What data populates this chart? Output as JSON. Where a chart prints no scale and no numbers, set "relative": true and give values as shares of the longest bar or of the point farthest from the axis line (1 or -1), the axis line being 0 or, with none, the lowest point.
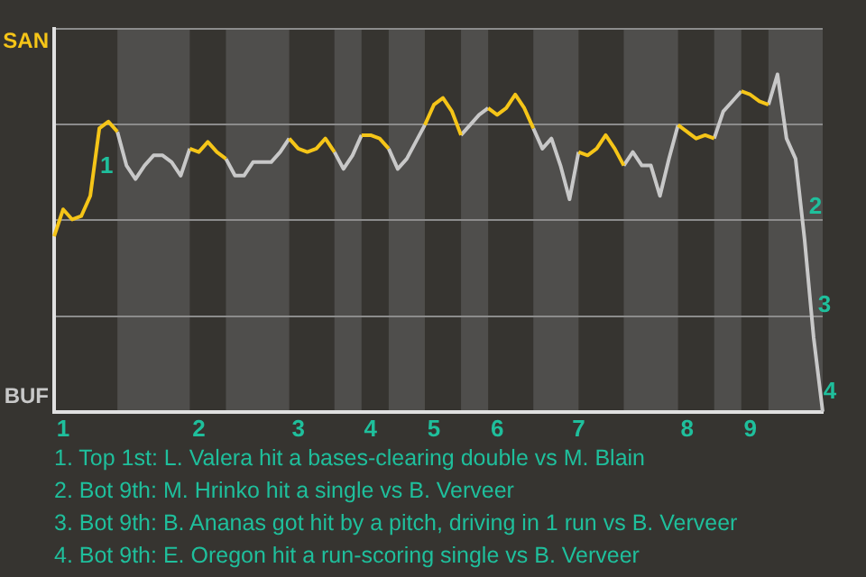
{
  "chart_data": {
    "type": "line",
    "relative": true,
    "categories": [
      null,
      "1",
      null,
      null,
      null,
      null,
      null,
      null,
      null,
      null,
      null,
      null,
      null,
      null,
      null,
      null,
      "2",
      null,
      null,
      null,
      null,
      null,
      null,
      null,
      null,
      null,
      null,
      "3",
      null,
      null,
      null,
      null,
      null,
      null,
      null,
      "4",
      null,
      null,
      null,
      null,
      null,
      null,
      "5",
      null,
      null,
      null,
      null,
      null,
      null,
      "6",
      null,
      null,
      null,
      null,
      null,
      null,
      null,
      null,
      "7",
      null,
      null,
      null,
      null,
      null,
      null,
      null,
      null,
      null,
      null,
      null,
      "8",
      null,
      null,
      null,
      null,
      null,
      null,
      "9",
      null,
      null,
      null,
      null,
      null,
      null,
      null,
      null
    ],
    "series": [
      {
        "color": "#f5c518",
        "values": [
          0.52,
          0.6,
          0.57,
          0.58,
          0.64,
          0.84,
          0.86,
          0.83,
          null,
          null,
          null,
          null,
          null,
          null,
          null,
          0.78,
          0.77,
          0.8,
          0.77,
          0.75,
          null,
          null,
          null,
          null,
          null,
          null,
          0.81,
          0.78,
          0.77,
          0.78,
          0.81,
          0.77,
          null,
          null,
          0.82,
          0.82,
          0.81,
          0.78,
          null,
          null,
          null,
          0.85,
          0.91,
          0.93,
          0.89,
          0.82,
          null,
          null,
          0.9,
          0.88,
          0.9,
          0.94,
          0.9,
          0.84,
          null,
          null,
          null,
          null,
          0.77,
          0.76,
          0.78,
          0.82,
          0.78,
          0.73,
          null,
          null,
          null,
          null,
          null,
          0.85,
          0.83,
          0.81,
          0.82,
          0.81,
          null,
          null,
          0.95,
          0.94,
          0.92,
          0.91,
          null,
          null,
          null,
          null,
          null,
          null
        ]
      },
      {
        "color": "#c8c8c8",
        "values": [
          null,
          null,
          null,
          null,
          null,
          null,
          null,
          0.83,
          0.73,
          0.69,
          0.73,
          0.76,
          0.76,
          0.74,
          0.7,
          0.78,
          null,
          null,
          null,
          0.75,
          0.7,
          0.7,
          0.74,
          0.74,
          0.74,
          0.77,
          0.81,
          null,
          null,
          null,
          null,
          0.77,
          0.72,
          0.76,
          0.82,
          null,
          null,
          0.78,
          0.72,
          0.75,
          0.8,
          0.85,
          null,
          null,
          null,
          0.82,
          0.85,
          0.88,
          0.9,
          null,
          null,
          null,
          null,
          0.84,
          0.78,
          0.81,
          0.73,
          0.63,
          0.77,
          null,
          null,
          null,
          null,
          0.73,
          0.77,
          0.73,
          0.73,
          0.64,
          0.75,
          0.85,
          null,
          null,
          null,
          0.81,
          0.89,
          0.92,
          0.95,
          null,
          null,
          0.91,
          1,
          0.81,
          0.75,
          0.51,
          0.22,
          0
        ]
      }
    ],
    "grid": "y",
    "legend": false,
    "marker": "none",
    "line_style": "solid",
    "annotations": [
      "SAN",
      "BUF",
      {
        "text": "1",
        "y": 0.84
      },
      {
        "text": "2",
        "y": 0.51
      },
      {
        "text": "3",
        "y": 0.22
      },
      "4",
      "1. Top 1st: L. Valera hit a bases-clearing double vs M. Blain",
      "2. Bot 9th: M. Hrinko hit a single vs B. Verveer",
      "3. Bot 9th: B. Ananas got hit by a pitch, driving in 1 run vs B. Verveer",
      "4. Bot 9th: E. Oregon hit a run-scoring single vs B. Verveer"
    ]
  }
}
